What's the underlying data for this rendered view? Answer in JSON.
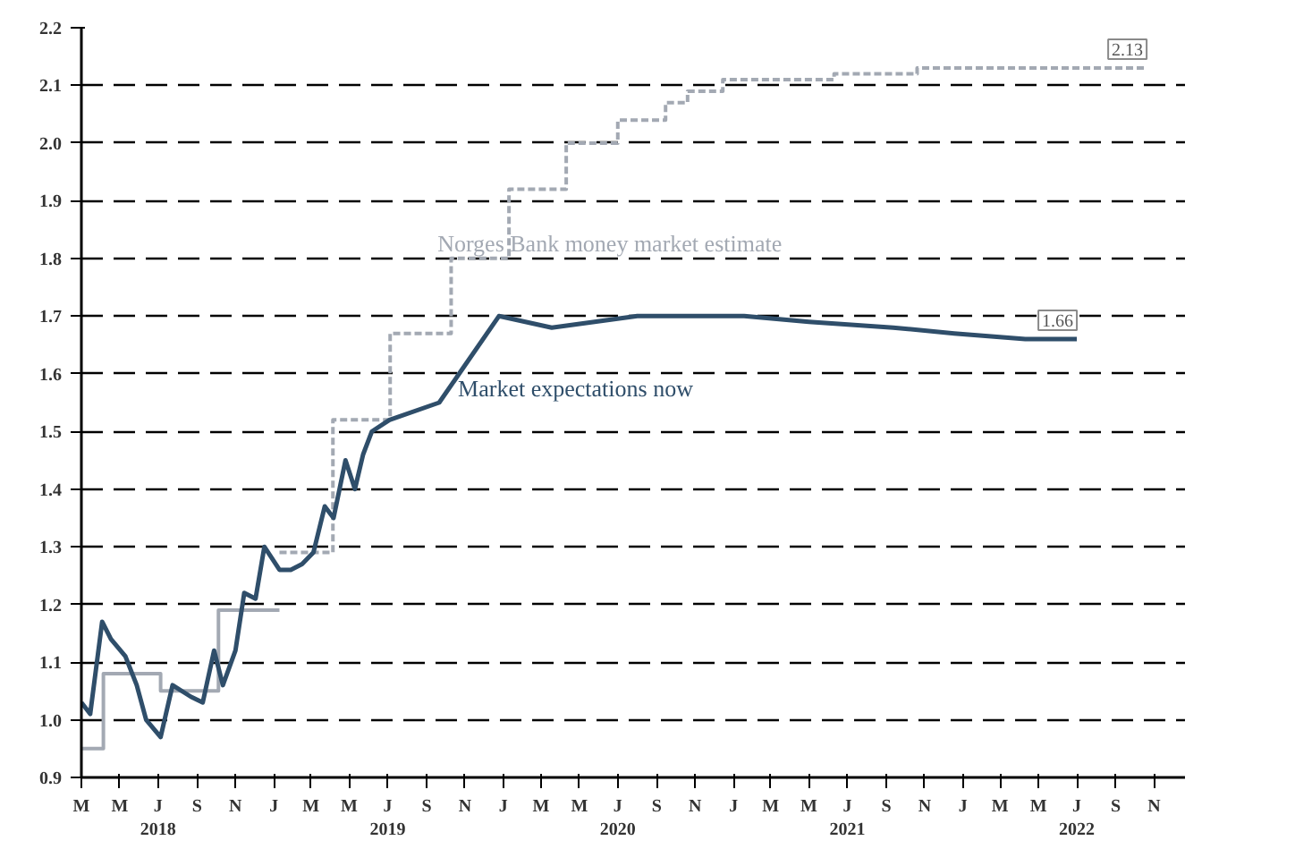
{
  "chart_data": {
    "type": "step",
    "xlim": [
      "2018-03-01",
      "2022-12-20"
    ],
    "xticks": [
      {
        "value": "2018-03-01",
        "label": "M"
      },
      {
        "value": "2018-05-01",
        "label": "M"
      },
      {
        "value": "2018-07-01",
        "label": "J\n2018"
      },
      {
        "value": "2018-09-01",
        "label": "S"
      },
      {
        "value": "2018-11-01",
        "label": "N"
      },
      {
        "value": "2019-01-01",
        "label": "J"
      },
      {
        "value": "2019-03-01",
        "label": "M"
      },
      {
        "value": "2019-05-01",
        "label": "M"
      },
      {
        "value": "2019-07-01",
        "label": "J\n2019"
      },
      {
        "value": "2019-09-01",
        "label": "S"
      },
      {
        "value": "2019-11-01",
        "label": "N"
      },
      {
        "value": "2020-01-01",
        "label": "J"
      },
      {
        "value": "2020-03-01",
        "label": "M"
      },
      {
        "value": "2020-05-01",
        "label": "M"
      },
      {
        "value": "2020-07-01",
        "label": "J\n2020"
      },
      {
        "value": "2020-09-01",
        "label": "S"
      },
      {
        "value": "2020-11-01",
        "label": "N"
      },
      {
        "value": "2021-01-01",
        "label": "J"
      },
      {
        "value": "2021-03-01",
        "label": "M"
      },
      {
        "value": "2021-05-01",
        "label": "M"
      },
      {
        "value": "2021-07-01",
        "label": "J\n2021"
      },
      {
        "value": "2021-09-01",
        "label": "S"
      },
      {
        "value": "2021-11-01",
        "label": "N"
      },
      {
        "value": "2022-01-01",
        "label": "J"
      },
      {
        "value": "2022-03-01",
        "label": "M"
      },
      {
        "value": "2022-05-01",
        "label": "M"
      },
      {
        "value": "2022-07-01",
        "label": "J\n2022"
      },
      {
        "value": "2022-09-01",
        "label": "S"
      },
      {
        "value": "2022-11-01",
        "label": "N"
      }
    ],
    "ylim": [
      0.9,
      2.2
    ],
    "yticks": [
      {
        "value": 0.9,
        "label": "0.9"
      },
      {
        "value": 1.0,
        "label": "1.0"
      },
      {
        "value": 1.1,
        "label": "1.1"
      },
      {
        "value": 1.2,
        "label": "1.2"
      },
      {
        "value": 1.3,
        "label": "1.3"
      },
      {
        "value": 1.4,
        "label": "1.4"
      },
      {
        "value": 1.5,
        "label": "1.5"
      },
      {
        "value": 1.6,
        "label": "1.6"
      },
      {
        "value": 1.7,
        "label": "1.7"
      },
      {
        "value": 1.8,
        "label": "1.8"
      },
      {
        "value": 1.9,
        "label": "1.9"
      },
      {
        "value": 2.0,
        "label": "2.0"
      },
      {
        "value": 2.1,
        "label": "2.1"
      },
      {
        "value": 2.2,
        "label": "2.2"
      }
    ],
    "grid": "y",
    "series": [
      {
        "color": "#a3a9b3",
        "line_style": "solid",
        "x": [
          "2018-03-01",
          "2018-04-05",
          "2018-07-05",
          "2018-10-05",
          "2019-01-10"
        ],
        "values": [
          0.95,
          1.08,
          1.05,
          1.19,
          1.19
        ]
      },
      {
        "name": "Norges Bank money market estimate",
        "color": "#a3a9b3",
        "line_style": "dashed",
        "x": [
          "2019-01-10",
          "2019-04-05",
          "2019-07-05",
          "2019-10-10",
          "2020-01-10",
          "2020-04-10",
          "2020-07-01",
          "2020-09-15",
          "2020-10-20",
          "2020-12-15",
          "2021-06-10",
          "2021-10-20",
          "2022-10-20"
        ],
        "values": [
          1.29,
          1.52,
          1.67,
          1.8,
          1.92,
          2.0,
          2.04,
          2.07,
          2.09,
          2.11,
          2.12,
          2.13,
          2.13
        ],
        "value_labels": [
          null,
          null,
          null,
          null,
          null,
          null,
          null,
          null,
          null,
          null,
          null,
          null,
          "2.13"
        ]
      },
      {
        "name": "Market expectations now",
        "type": "line",
        "color": "#2f4e6a",
        "line_style": "solid",
        "x": [
          "2018-03-01",
          "2018-03-15",
          "2018-04-03",
          "2018-04-17",
          "2018-05-10",
          "2018-05-28",
          "2018-06-12",
          "2018-07-05",
          "2018-07-24",
          "2018-08-22",
          "2018-09-10",
          "2018-09-28",
          "2018-10-12",
          "2018-11-01",
          "2018-11-15",
          "2018-12-03",
          "2018-12-17",
          "2019-01-10",
          "2019-01-28",
          "2019-02-15",
          "2019-03-05",
          "2019-03-23",
          "2019-04-06",
          "2019-04-25",
          "2019-05-10",
          "2019-05-23",
          "2019-06-06",
          "2019-07-04",
          "2019-09-21",
          "2019-12-25",
          "2020-03-18",
          "2020-08-01",
          "2021-01-18",
          "2021-05-01",
          "2021-09-12",
          "2021-12-18",
          "2022-04-10",
          "2022-07-01"
        ],
        "values": [
          1.03,
          1.01,
          1.17,
          1.14,
          1.11,
          1.06,
          1.0,
          0.97,
          1.06,
          1.04,
          1.03,
          1.12,
          1.06,
          1.12,
          1.22,
          1.21,
          1.3,
          1.26,
          1.26,
          1.27,
          1.29,
          1.37,
          1.35,
          1.45,
          1.4,
          1.46,
          1.5,
          1.52,
          1.55,
          1.7,
          1.68,
          1.7,
          1.7,
          1.69,
          1.68,
          1.67,
          1.66,
          1.66
        ],
        "value_labels": [
          null,
          null,
          null,
          null,
          null,
          null,
          null,
          null,
          null,
          null,
          null,
          null,
          null,
          null,
          null,
          null,
          null,
          null,
          null,
          null,
          null,
          null,
          null,
          null,
          null,
          null,
          null,
          null,
          null,
          null,
          null,
          null,
          null,
          null,
          null,
          null,
          null,
          "1.66"
        ]
      }
    ]
  }
}
